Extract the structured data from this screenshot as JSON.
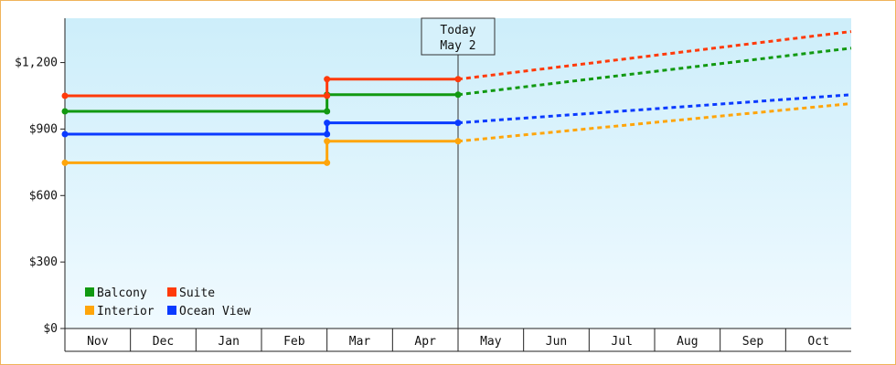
{
  "chart_data": {
    "type": "line",
    "title": "",
    "xlabel": "",
    "ylabel": "",
    "ylim": [
      0,
      1400
    ],
    "yticks": [
      {
        "value": 0,
        "label": "$0"
      },
      {
        "value": 300,
        "label": "$300"
      },
      {
        "value": 600,
        "label": "$600"
      },
      {
        "value": 900,
        "label": "$900"
      },
      {
        "value": 1200,
        "label": "$1,200"
      }
    ],
    "months": [
      "Nov",
      "Dec",
      "Jan",
      "Feb",
      "Mar",
      "Apr",
      "May",
      "Jun",
      "Jul",
      "Aug",
      "Sep",
      "Oct"
    ],
    "xlim": [
      0,
      12
    ],
    "grid": false,
    "legend_position": "bottom-left",
    "today_marker": {
      "line1": "Today",
      "line2": "May 2",
      "x": 6.0
    },
    "series": [
      {
        "name": "Balcony",
        "color": "#119911",
        "history": [
          [
            0,
            980
          ],
          [
            4.0,
            980
          ],
          [
            4.0,
            1055
          ],
          [
            6.0,
            1055
          ]
        ],
        "forecast": [
          [
            6.0,
            1055
          ],
          [
            12,
            1265
          ]
        ]
      },
      {
        "name": "Suite",
        "color": "#ff3a0a",
        "history": [
          [
            0,
            1050
          ],
          [
            4.0,
            1050
          ],
          [
            4.0,
            1125
          ],
          [
            6.0,
            1125
          ]
        ],
        "forecast": [
          [
            6.0,
            1125
          ],
          [
            12,
            1340
          ]
        ]
      },
      {
        "name": "Interior",
        "color": "#ffa50a",
        "history": [
          [
            0,
            748
          ],
          [
            4.0,
            748
          ],
          [
            4.0,
            845
          ],
          [
            6.0,
            845
          ]
        ],
        "forecast": [
          [
            6.0,
            845
          ],
          [
            12,
            1015
          ]
        ]
      },
      {
        "name": "Ocean View",
        "color": "#0a3aff",
        "history": [
          [
            0,
            877
          ],
          [
            4.0,
            877
          ],
          [
            4.0,
            928
          ],
          [
            6.0,
            928
          ]
        ],
        "forecast": [
          [
            6.0,
            928
          ],
          [
            12,
            1055
          ]
        ]
      }
    ]
  }
}
